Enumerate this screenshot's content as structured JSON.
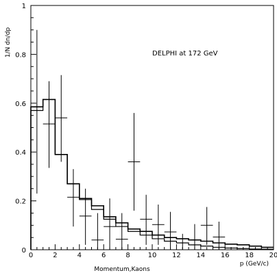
{
  "chart_data": {
    "type": "step_with_errorbars",
    "title": "",
    "xlabel": "p (GeV/c)",
    "ylabel": "1/N dn/dp",
    "annotation": "DELPHI at 172 GeV",
    "bottom_label": "Momentum,Kaons",
    "xlim": [
      0,
      20
    ],
    "ylim": [
      0,
      1
    ],
    "x_ticks": [
      0,
      2,
      4,
      6,
      8,
      10,
      12,
      14,
      16,
      18,
      20
    ],
    "y_ticks": [
      0,
      0.2,
      0.4,
      0.6,
      0.8,
      1
    ],
    "y_tick_labels": [
      "0",
      "0.2",
      "0.4",
      "0.6",
      "0.8",
      "1"
    ],
    "series": [
      {
        "style": "histogram",
        "bin_width": 1,
        "bins": [
          {
            "x0": 0,
            "x1": 1,
            "y": 0.585
          },
          {
            "x0": 1,
            "x1": 2,
            "y": 0.615
          },
          {
            "x0": 2,
            "x1": 3,
            "y": 0.39
          },
          {
            "x0": 3,
            "x1": 4,
            "y": 0.27
          },
          {
            "x0": 4,
            "x1": 5,
            "y": 0.21
          },
          {
            "x0": 5,
            "x1": 6,
            "y": 0.18
          },
          {
            "x0": 6,
            "x1": 7,
            "y": 0.135
          },
          {
            "x0": 7,
            "x1": 8,
            "y": 0.11
          },
          {
            "x0": 8,
            "x1": 9,
            "y": 0.085
          },
          {
            "x0": 9,
            "x1": 10,
            "y": 0.075
          },
          {
            "x0": 10,
            "x1": 11,
            "y": 0.06
          },
          {
            "x0": 11,
            "x1": 12,
            "y": 0.05
          },
          {
            "x0": 12,
            "x1": 13,
            "y": 0.045
          },
          {
            "x0": 13,
            "x1": 14,
            "y": 0.04
          },
          {
            "x0": 14,
            "x1": 15,
            "y": 0.035
          },
          {
            "x0": 15,
            "x1": 16,
            "y": 0.028
          },
          {
            "x0": 16,
            "x1": 17,
            "y": 0.023
          },
          {
            "x0": 17,
            "x1": 18,
            "y": 0.02
          },
          {
            "x0": 18,
            "x1": 19,
            "y": 0.015
          },
          {
            "x0": 19,
            "x1": 20,
            "y": 0.01
          }
        ]
      },
      {
        "style": "histogram",
        "bin_width": 1,
        "bins": [
          {
            "x0": 0,
            "x1": 1,
            "y": 0.57
          },
          {
            "x0": 1,
            "x1": 2,
            "y": 0.615
          },
          {
            "x0": 2,
            "x1": 3,
            "y": 0.39
          },
          {
            "x0": 3,
            "x1": 4,
            "y": 0.27
          },
          {
            "x0": 4,
            "x1": 5,
            "y": 0.205
          },
          {
            "x0": 5,
            "x1": 6,
            "y": 0.165
          },
          {
            "x0": 6,
            "x1": 7,
            "y": 0.125
          },
          {
            "x0": 7,
            "x1": 8,
            "y": 0.095
          },
          {
            "x0": 8,
            "x1": 9,
            "y": 0.075
          },
          {
            "x0": 9,
            "x1": 10,
            "y": 0.06
          },
          {
            "x0": 10,
            "x1": 11,
            "y": 0.045
          },
          {
            "x0": 11,
            "x1": 12,
            "y": 0.035
          },
          {
            "x0": 12,
            "x1": 13,
            "y": 0.028
          },
          {
            "x0": 13,
            "x1": 14,
            "y": 0.02
          },
          {
            "x0": 14,
            "x1": 15,
            "y": 0.015
          },
          {
            "x0": 15,
            "x1": 16,
            "y": 0.01
          },
          {
            "x0": 16,
            "x1": 17,
            "y": 0.007
          },
          {
            "x0": 17,
            "x1": 18,
            "y": 0.005
          },
          {
            "x0": 18,
            "x1": 19,
            "y": 0.003
          },
          {
            "x0": 19,
            "x1": 20,
            "y": 0.002
          }
        ]
      },
      {
        "style": "points_with_errorbars",
        "points": [
          {
            "x": 0.5,
            "y": 0.57,
            "xerr": 0.5,
            "ylow": 0.23,
            "yhigh": 0.9
          },
          {
            "x": 1.5,
            "y": 0.515,
            "xerr": 0.5,
            "ylow": 0.335,
            "yhigh": 0.69
          },
          {
            "x": 2.5,
            "y": 0.54,
            "xerr": 0.5,
            "ylow": 0.36,
            "yhigh": 0.715
          },
          {
            "x": 3.5,
            "y": 0.215,
            "xerr": 0.5,
            "ylow": 0.095,
            "yhigh": 0.33
          },
          {
            "x": 4.5,
            "y": 0.138,
            "xerr": 0.5,
            "ylow": 0.02,
            "yhigh": 0.25
          },
          {
            "x": 5.5,
            "y": 0.04,
            "xerr": 0.5,
            "ylow": 0.0,
            "yhigh": 0.15
          },
          {
            "x": 6.5,
            "y": 0.095,
            "xerr": 0.5,
            "ylow": 0.0,
            "yhigh": 0.21
          },
          {
            "x": 7.5,
            "y": 0.043,
            "xerr": 0.5,
            "ylow": 0.0,
            "yhigh": 0.15
          },
          {
            "x": 8.5,
            "y": 0.36,
            "xerr": 0.5,
            "ylow": 0.16,
            "yhigh": 0.56
          },
          {
            "x": 9.5,
            "y": 0.125,
            "xerr": 0.5,
            "ylow": 0.02,
            "yhigh": 0.225
          },
          {
            "x": 10.5,
            "y": 0.103,
            "xerr": 0.5,
            "ylow": 0.02,
            "yhigh": 0.185
          },
          {
            "x": 11.5,
            "y": 0.073,
            "xerr": 0.5,
            "ylow": 0.0,
            "yhigh": 0.155
          },
          {
            "x": 12.5,
            "y": 0.028,
            "xerr": 0.5,
            "ylow": 0.0,
            "yhigh": 0.065
          },
          {
            "x": 13.5,
            "y": 0.04,
            "xerr": 0.5,
            "ylow": 0.0,
            "yhigh": 0.105
          },
          {
            "x": 14.5,
            "y": 0.1,
            "xerr": 0.5,
            "ylow": 0.02,
            "yhigh": 0.175
          },
          {
            "x": 15.5,
            "y": 0.052,
            "xerr": 0.5,
            "ylow": 0.0,
            "yhigh": 0.115
          }
        ]
      }
    ],
    "grid": false,
    "colors": {
      "line": "#000000",
      "background": "#ffffff"
    }
  }
}
